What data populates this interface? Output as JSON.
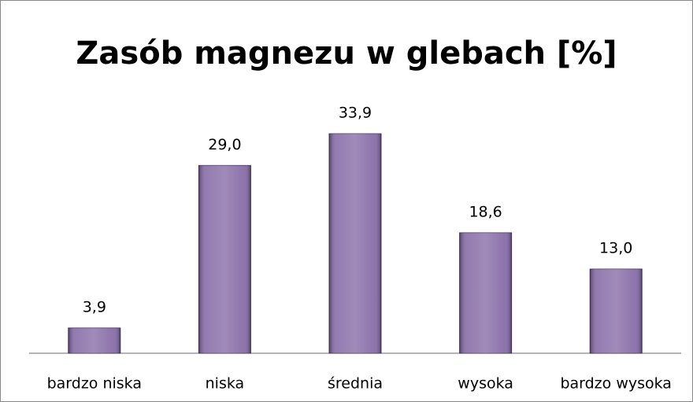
{
  "chart_data": {
    "type": "bar",
    "title": "Zasób magnezu w glebach [%]",
    "categories": [
      "bardzo niska",
      "niska",
      "średnia",
      "wysoka",
      "bardzo wysoka"
    ],
    "values": [
      3.9,
      29.0,
      33.9,
      18.6,
      13.0
    ],
    "value_labels": [
      "3,9",
      "29,0",
      "33,9",
      "18,6",
      "13,0"
    ],
    "color": "#8064a2"
  }
}
